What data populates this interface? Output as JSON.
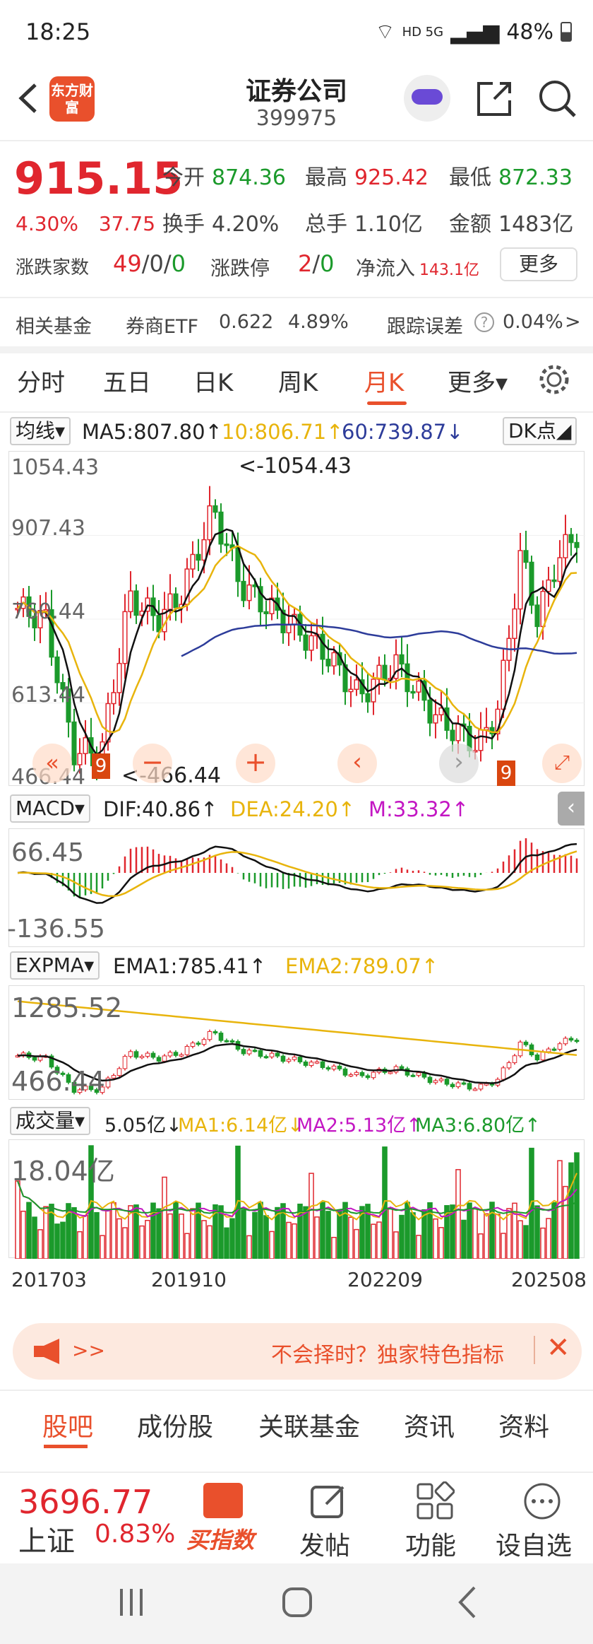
{
  "status": {
    "time": "18:25",
    "net": "HD 5G",
    "battery": "48%"
  },
  "header": {
    "logo": "东方财富",
    "title": "证券公司",
    "code": "399975"
  },
  "quote": {
    "price": "915.15",
    "pct": "4.30%",
    "chg": "37.75",
    "open_label": "今开",
    "open": "874.36",
    "high_label": "最高",
    "high": "925.42",
    "low_label": "最低",
    "low": "872.33",
    "turnover_label": "换手",
    "turnover": "4.20%",
    "volume_label": "总手",
    "volume": "1.10亿",
    "amount_label": "金额",
    "amount": "1483亿",
    "breadth_label": "涨跌家数",
    "breadth_up": "49",
    "breadth_mid": "/0/",
    "breadth_down": "0",
    "limit_label": "涨跌停",
    "limit_up": "2",
    "limit_sep": "/",
    "limit_down": "0",
    "inflow_label": "净流入",
    "inflow": "143.1亿",
    "more": "更多"
  },
  "fund": {
    "label": "相关基金",
    "name": "券商ETF",
    "price": "0.622",
    "pct": "4.89%",
    "err_label": "跟踪误差",
    "err": "0.04%",
    "arrow": ">"
  },
  "tabs": [
    "分时",
    "五日",
    "日K",
    "周K",
    "月K",
    "更多▾"
  ],
  "settings_icon": "gear-icon",
  "ma": {
    "select": "均线▾",
    "ma5": "MA5:807.80↑",
    "ma10": "10:806.71↑",
    "ma60": "60:739.87↓",
    "dk": "DK点◢"
  },
  "kline": {
    "y_labels": [
      "1054.43",
      "907.43",
      "760.44",
      "613.44",
      "466.44"
    ],
    "max_label": "<-1054.43",
    "min_label": "<-466.44",
    "nine_a": "9",
    "nine_b": "9"
  },
  "macd": {
    "select": "MACD▾",
    "dif": "DIF:40.86↑",
    "dea": "DEA:24.20↑",
    "m": "M:33.32↑",
    "top": "66.45",
    "bottom": "-136.55"
  },
  "expma": {
    "select": "EXPMA▾",
    "ema1": "EMA1:785.41↑",
    "ema2": "EMA2:789.07↑",
    "top": "1285.52",
    "bottom": "466.44"
  },
  "vol": {
    "select": "成交量▾",
    "v": "5.05亿↓",
    "ma1": "MA1:6.14亿↓",
    "ma2": "MA2:5.13亿↑",
    "ma3": "MA3:6.80亿↑",
    "top": "18.04亿",
    "dates": [
      "201703",
      "201910",
      "202209",
      "202508"
    ]
  },
  "banner": {
    "left": ">>",
    "text": "不会择时？独家特色指标"
  },
  "bottom_tabs": [
    "股吧",
    "成份股",
    "关联基金",
    "资讯",
    "资料"
  ],
  "footer": {
    "index_price": "3696.77",
    "index_name": "上证",
    "index_pct": "0.83%",
    "buy": "买指数",
    "post": "发帖",
    "func": "功能",
    "watch": "设自选"
  },
  "chart_data": {
    "type": "candlestick",
    "title": "证券公司 399975 月K",
    "ylim": [
      466.44,
      1054.43
    ],
    "max": 1054.43,
    "min": 466.44,
    "last": 915.15,
    "x_ticks": [
      "201703",
      "201910",
      "202209",
      "202508"
    ]
  }
}
